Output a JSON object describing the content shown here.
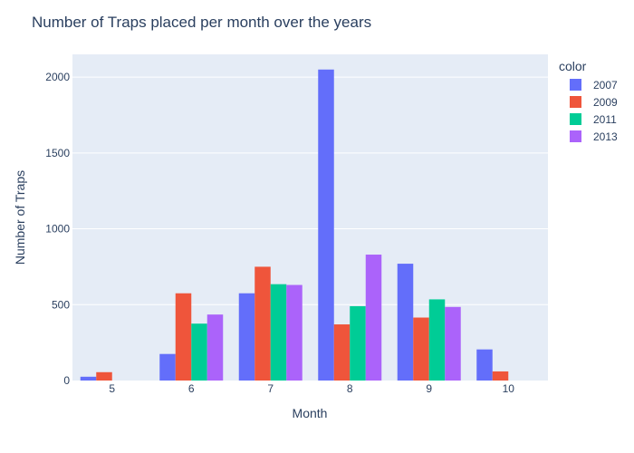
{
  "chart_data": {
    "type": "bar",
    "title": "Number of Traps placed per month over the years",
    "xlabel": "Month",
    "ylabel": "Number of Traps",
    "categories": [
      "5",
      "6",
      "7",
      "8",
      "9",
      "10"
    ],
    "ylim": [
      0,
      2150
    ],
    "yticks": [
      0,
      500,
      1000,
      1500,
      2000
    ],
    "grid": true,
    "legend_title": "color",
    "legend_position": "right",
    "series": [
      {
        "name": "2007",
        "color": "#636efa",
        "values": [
          25,
          175,
          575,
          2050,
          770,
          205
        ]
      },
      {
        "name": "2009",
        "color": "#ef553b",
        "values": [
          55,
          575,
          750,
          370,
          415,
          60
        ]
      },
      {
        "name": "2011",
        "color": "#00cc96",
        "values": [
          null,
          375,
          635,
          490,
          535,
          null
        ]
      },
      {
        "name": "2013",
        "color": "#ab63fa",
        "values": [
          null,
          435,
          630,
          830,
          485,
          null
        ]
      }
    ]
  }
}
